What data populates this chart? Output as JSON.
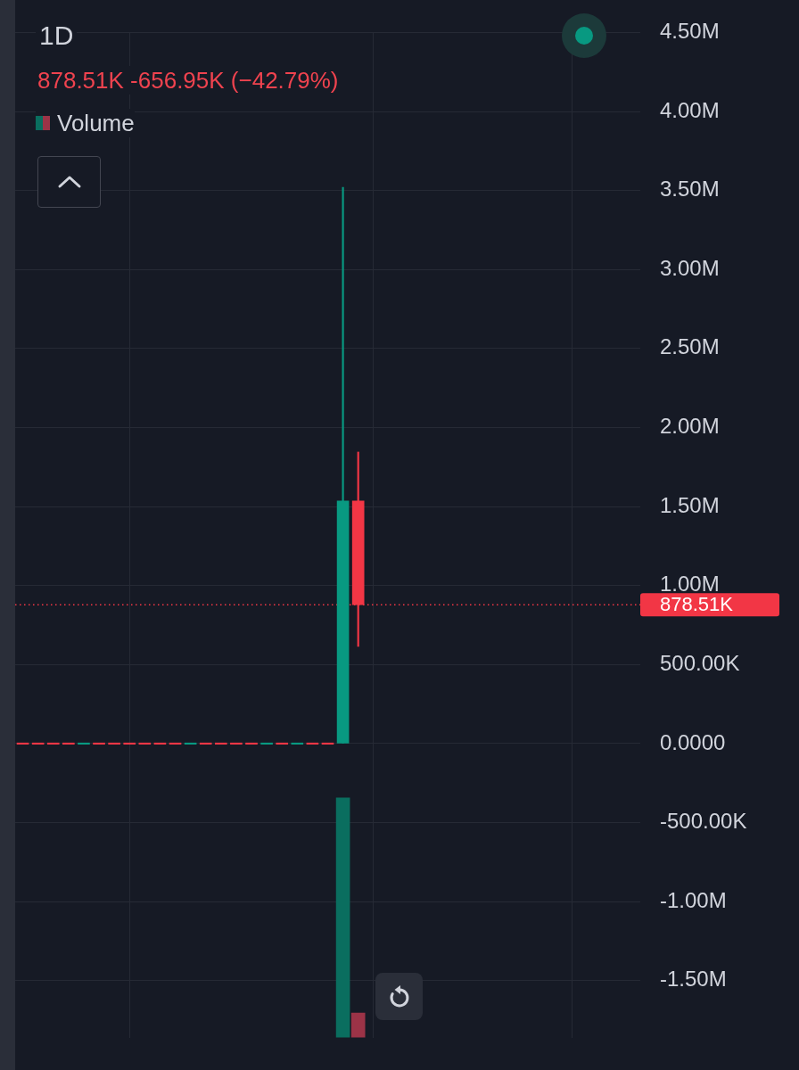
{
  "chart_data": {
    "type": "candlestick",
    "title": "1D",
    "subtitle": "878.51K -656.95K (−42.79%)",
    "categories": [
      null,
      null,
      null,
      null,
      null,
      null,
      null,
      null,
      null,
      null,
      null,
      null,
      null,
      null,
      null,
      null,
      null,
      null,
      null,
      null,
      null,
      null,
      null,
      null,
      null,
      null,
      null,
      null,
      null,
      null,
      null,
      null,
      null,
      null,
      null,
      null,
      null,
      null,
      null,
      null,
      null
    ],
    "series": [
      {
        "ohlc": [
          [
            0,
            0,
            0,
            0
          ],
          [
            0,
            0,
            0,
            0
          ],
          [
            0,
            0,
            0,
            0
          ],
          [
            0,
            0,
            0,
            0
          ],
          [
            0,
            0,
            0,
            0
          ],
          [
            0,
            0,
            0,
            0
          ],
          [
            0,
            0,
            0,
            0
          ],
          [
            0,
            0,
            0,
            0
          ],
          [
            0,
            0,
            0,
            0
          ],
          [
            0,
            0,
            0,
            0
          ],
          [
            0,
            0,
            0,
            0
          ],
          [
            0,
            0,
            0,
            0
          ],
          [
            0,
            0,
            0,
            0
          ],
          [
            0,
            0,
            0,
            0
          ],
          [
            0,
            0,
            0,
            0
          ],
          [
            0,
            0,
            0,
            0
          ],
          [
            0,
            0,
            0,
            0
          ],
          [
            0,
            0,
            0,
            0
          ],
          [
            0,
            0,
            0,
            0
          ],
          [
            0,
            0,
            0,
            0
          ],
          [
            0,
            0,
            0,
            0
          ],
          [
            0,
            3520000,
            0,
            1535460
          ],
          [
            1535460,
            1845000,
            615000,
            878510
          ],
          null,
          null,
          null,
          null,
          null,
          null,
          null,
          null,
          null,
          null,
          null,
          null,
          null,
          null,
          null,
          null,
          null,
          null
        ],
        "colors": [
          "#f23645",
          "#f23645",
          "#f23645",
          "#f23645",
          "#089981",
          "#f23645",
          "#f23645",
          "#f23645",
          "#f23645",
          "#f23645",
          "#f23645",
          "#089981",
          "#f23645",
          "#f23645",
          "#f23645",
          "#f23645",
          "#089981",
          "#f23645",
          "#089981",
          "#f23645",
          "#f23645",
          "#089981",
          "#f23645",
          null,
          null,
          null,
          null,
          null,
          null,
          null,
          null,
          null,
          null,
          null,
          null,
          null,
          null,
          null,
          null,
          null,
          null
        ]
      },
      {
        "type": "bar",
        "name": "Volume",
        "values": [
          null,
          null,
          null,
          null,
          null,
          null,
          null,
          null,
          null,
          null,
          null,
          null,
          null,
          null,
          null,
          null,
          null,
          null,
          null,
          null,
          null,
          1516000,
          155000,
          null,
          null,
          null,
          null,
          null,
          null,
          null,
          null,
          null,
          null,
          null,
          null,
          null,
          null,
          null,
          null,
          null,
          null
        ],
        "base": [
          null,
          null,
          null,
          null,
          null,
          null,
          null,
          null,
          null,
          null,
          null,
          null,
          null,
          null,
          null,
          null,
          null,
          null,
          null,
          null,
          null,
          -1860000,
          -1860000,
          null,
          null,
          null,
          null,
          null,
          null,
          null,
          null,
          null,
          null,
          null,
          null,
          null,
          null,
          null,
          null,
          null,
          null
        ],
        "colors": [
          null,
          null,
          null,
          null,
          null,
          null,
          null,
          null,
          null,
          null,
          null,
          null,
          null,
          null,
          null,
          null,
          null,
          null,
          null,
          null,
          null,
          "#0a6e5f",
          "#9c3347",
          null,
          null,
          null,
          null,
          null,
          null,
          null,
          null,
          null,
          null,
          null,
          null,
          null,
          null,
          null,
          null,
          null,
          null
        ]
      }
    ],
    "ylim": [
      -1860000,
      4500000
    ],
    "yticks": [
      {
        "value": -1500000,
        "label": "-1.50M"
      },
      {
        "value": -1000000,
        "label": "-1.00M"
      },
      {
        "value": -500000,
        "label": "-500.00K"
      },
      {
        "value": 0,
        "label": "0.0000"
      },
      {
        "value": 500000,
        "label": "500.00K"
      },
      {
        "value": 1000000,
        "label": "1.00M"
      },
      {
        "value": 1500000,
        "label": "1.50M"
      },
      {
        "value": 2000000,
        "label": "2.00M"
      },
      {
        "value": 2500000,
        "label": "2.50M"
      },
      {
        "value": 3000000,
        "label": "3.00M"
      },
      {
        "value": 3500000,
        "label": "3.50M"
      },
      {
        "value": 4000000,
        "label": "4.00M"
      },
      {
        "value": 4500000,
        "label": "4.50M"
      }
    ],
    "ref_lines": [
      {
        "axis": "y",
        "value": 878510,
        "label": "878.51K",
        "color": "#f23645",
        "line_style": "dotted"
      }
    ],
    "grid": true,
    "legend": "top left",
    "tick_labels": "y"
  }
}
